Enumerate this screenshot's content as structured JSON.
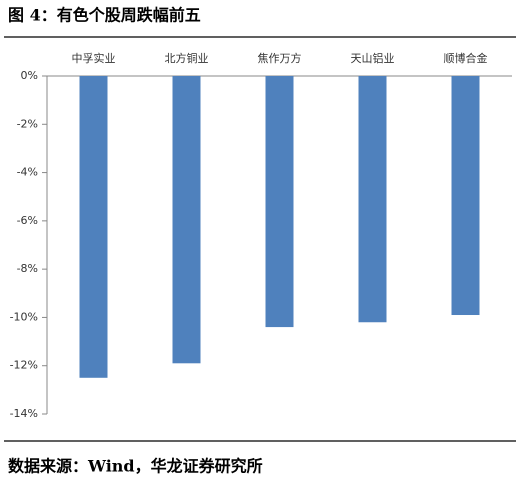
{
  "chart_data": {
    "type": "bar",
    "title": "图 4：有色个股周跌幅前五",
    "categories": [
      "中孚实业",
      "北方铜业",
      "焦作万方",
      "天山铝业",
      "顺博合金"
    ],
    "values": [
      -12.5,
      -11.9,
      -10.4,
      -10.2,
      -9.9
    ],
    "color": "#4f81bd",
    "ylim": [
      -14,
      0
    ],
    "yticks": [
      {
        "value": 0,
        "label": "0%"
      },
      {
        "value": -2,
        "label": "-2%"
      },
      {
        "value": -4,
        "label": "-4%"
      },
      {
        "value": -6,
        "label": "-6%"
      },
      {
        "value": -8,
        "label": "-8%"
      },
      {
        "value": -10,
        "label": "-10%"
      },
      {
        "value": -12,
        "label": "-12%"
      },
      {
        "value": -14,
        "label": "-14%"
      }
    ],
    "grid": false,
    "source": "数据来源：Wind，华龙证券研究所"
  }
}
